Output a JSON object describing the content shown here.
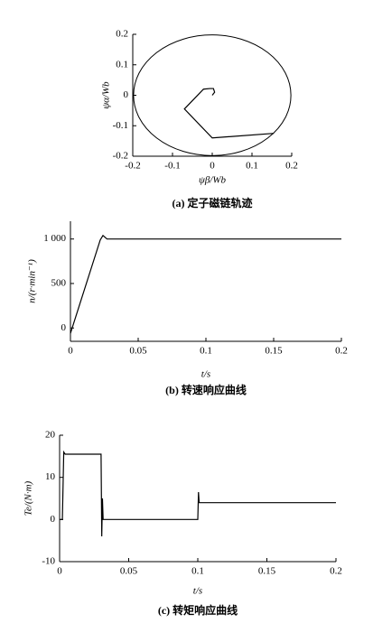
{
  "chart_data": [
    {
      "type": "line",
      "caption": "(a) 定子磁链轨迹",
      "xlabel": "ψβ/Wb",
      "ylabel": "ψα/Wb",
      "xlim": [
        -0.2,
        0.2
      ],
      "xticks": [
        -0.2,
        -0.1,
        0,
        0.1,
        0.2
      ],
      "ylim": [
        -0.2,
        0.2
      ],
      "yticks": [
        -0.2,
        -0.1,
        0,
        0.1,
        0.2
      ],
      "circle": {
        "center": [
          0,
          0
        ],
        "radius": 0.198
      },
      "series": [
        {
          "color": "#000000",
          "x": [
            0,
            0.006,
            0.003,
            -0.006,
            -0.022,
            -0.07,
            0.0,
            0.155
          ],
          "y": [
            0.0,
            0.01,
            0.022,
            0.022,
            0.02,
            -0.045,
            -0.14,
            -0.125
          ]
        }
      ]
    },
    {
      "type": "line",
      "caption": "(b) 转速响应曲线",
      "xlabel": "t/s",
      "ylabel": "n/(r·min⁻¹)",
      "xlim": [
        0,
        0.2
      ],
      "xticks": [
        0,
        0.05,
        0.1,
        0.15,
        0.2
      ],
      "ylim": [
        -150,
        1200
      ],
      "yticks": [
        0,
        500,
        {
          "value": 1000,
          "label": "1 000"
        }
      ],
      "series": [
        {
          "color": "#000000",
          "x": [
            0,
            0.022,
            0.024,
            0.027,
            0.2
          ],
          "y": [
            -60,
            990,
            1040,
            1000,
            1000
          ]
        }
      ]
    },
    {
      "type": "line",
      "caption": "(c) 转矩响应曲线",
      "xlabel": "t/s",
      "ylabel": "Te/(N·m)",
      "xlim": [
        0,
        0.2
      ],
      "xticks": [
        0,
        0.05,
        0.1,
        0.15,
        0.2
      ],
      "ylim": [
        -10,
        20
      ],
      "yticks": [
        -10,
        0,
        10,
        20
      ],
      "series": [
        {
          "color": "#000000",
          "x": [
            0,
            0.002,
            0.003,
            0.004,
            0.03,
            0.0305,
            0.031,
            0.0315,
            0.033,
            0.1,
            0.1005,
            0.101,
            0.2
          ],
          "y": [
            0,
            0,
            16,
            15.5,
            15.5,
            -4,
            5,
            0,
            0,
            0,
            6.5,
            4,
            4
          ]
        }
      ]
    }
  ]
}
